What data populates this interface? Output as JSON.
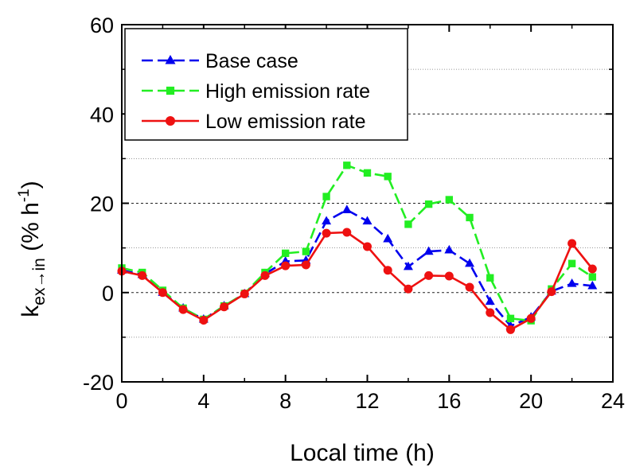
{
  "chart_data": {
    "type": "line",
    "title": "",
    "xlabel": "Local time (h)",
    "ylabel": {
      "main": "k",
      "sub": "ex→in",
      "unit_open": " (% h",
      "unit_exp": "-1",
      "unit_close": ")"
    },
    "xlim": [
      0,
      24
    ],
    "ylim": [
      -20,
      60
    ],
    "xticks": [
      0,
      4,
      8,
      12,
      16,
      20,
      24
    ],
    "yticks": [
      -20,
      0,
      20,
      40,
      60
    ],
    "grid": "horizontal dotted at 10-unit intervals",
    "legend_position": "top-left",
    "x": [
      0,
      1,
      2,
      3,
      4,
      5,
      6,
      7,
      8,
      9,
      10,
      11,
      12,
      13,
      14,
      15,
      16,
      17,
      18,
      19,
      20,
      21,
      22,
      23
    ],
    "series": [
      {
        "name": "Base case",
        "color": "#0000ee",
        "marker": "triangle",
        "line": "dashed",
        "values": [
          5,
          4,
          0,
          -3.5,
          -6,
          -3,
          -0.3,
          4.2,
          7,
          7.2,
          16,
          18.5,
          16,
          12,
          5.8,
          9.2,
          9.5,
          6.5,
          -2,
          -7.5,
          -5.5,
          0.3,
          2,
          1.5
        ]
      },
      {
        "name": "High emission rate",
        "color": "#22ee22",
        "marker": "square",
        "line": "dashed",
        "values": [
          5.5,
          4.5,
          0.5,
          -3.5,
          -6,
          -3,
          -0.2,
          4.5,
          8.8,
          9.2,
          21.5,
          28.5,
          26.8,
          26,
          15.3,
          19.8,
          20.8,
          16.8,
          3.3,
          -5.8,
          -6.3,
          0.8,
          6.5,
          3.5
        ]
      },
      {
        "name": "Low emission rate",
        "color": "#ee1111",
        "marker": "circle",
        "line": "solid",
        "values": [
          4.8,
          3.8,
          0,
          -3.8,
          -6.2,
          -3.2,
          -0.3,
          3.8,
          6,
          6.2,
          13.3,
          13.5,
          10.3,
          5,
          0.8,
          3.8,
          3.7,
          1.2,
          -4.5,
          -8.3,
          -5.8,
          0.2,
          11,
          5.3
        ]
      }
    ]
  }
}
